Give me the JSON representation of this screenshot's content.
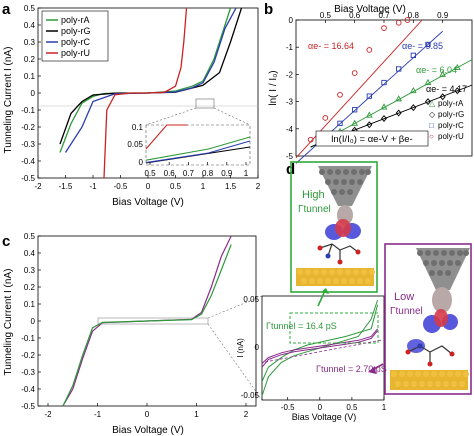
{
  "panels": {
    "a": {
      "letter": "a",
      "xlabel": "Bias Voltage (V)",
      "ylabel": "Tunneling Current I (nA)",
      "xticks": [
        "-2",
        "-1.5",
        "-1",
        "-0.5",
        "0",
        "0.5",
        "1",
        "1.5",
        "2"
      ],
      "yticks": [
        "0.5",
        "0.4",
        "0.3",
        "0.2",
        "0.1",
        "0",
        "-0.1",
        "-0.2",
        "-0.3",
        "-0.4",
        "-0.5"
      ],
      "legend": [
        "poly-rA",
        "poly-rG",
        "poly-rC",
        "poly-rU"
      ],
      "inset": {
        "yticks": [
          "0.1",
          "0.05",
          "0"
        ],
        "xticks": [
          "0.5",
          "0.6",
          "0.7",
          "0.8",
          "0.9",
          "1"
        ]
      }
    },
    "b": {
      "letter": "b",
      "xlabel": "Bias Voltage (V)",
      "ylabel": "ln( I / I₀)",
      "xticks": [
        "0.5",
        "0.6",
        "0.7",
        "0.8",
        "0.9"
      ],
      "yticks": [
        "0",
        "-1",
        "-2",
        "-3",
        "-4",
        "-5"
      ],
      "alphas": [
        "αe- = 16.64",
        "αe- = 9.85",
        "αe- = 6.04",
        "αe- = 4.17"
      ],
      "equation": "ln(I/I₀) = αe-V + βe-",
      "legend": [
        "poly-rA",
        "poly-rG",
        "poly-rC",
        "poly-rU"
      ]
    },
    "c": {
      "letter": "c",
      "xlabel": "Bias Voltage (V)",
      "ylabel": "Tunneling Current I (nA)",
      "xticks": [
        "-2",
        "-1",
        "0",
        "1",
        "2"
      ],
      "yticks": [
        "0.5",
        "0.4",
        "0.3",
        "0.2",
        "0.1",
        "0",
        "-0.1",
        "-0.2",
        "-0.3",
        "-0.4",
        "-0.5"
      ],
      "inset": {
        "ylabel": "I (nA)",
        "xlabel": "Bias Voltage (V)",
        "yticks": [
          "0.05",
          "0",
          "-0.05"
        ],
        "xticks": [
          "-0.5",
          "0",
          "0.5",
          "1"
        ],
        "high_gamma": "Γtunnel = 16.4 pS",
        "low_gamma": "Γtunnel = 2.70 pS"
      }
    },
    "d": {
      "letter": "d",
      "high_label": "High",
      "low_label": "Low",
      "gamma_label": "Γtunnel"
    }
  },
  "colors": {
    "rA": "#2e9a3a",
    "rG": "#000000",
    "rC": "#2a3cb0",
    "rU": "#cc2222",
    "purple": "#8a2b8a",
    "green_box": "#2eab3a",
    "gold": "#e8b530",
    "tip": "#9a9a9a"
  },
  "chart_data": [
    {
      "type": "line",
      "panel": "a",
      "xlabel": "Bias Voltage (V)",
      "ylabel": "Tunneling Current I (nA)",
      "xlim": [
        -2,
        2
      ],
      "ylim": [
        -0.5,
        0.5
      ],
      "series": [
        {
          "name": "poly-rA",
          "x": [
            -1.6,
            -1.4,
            -1.2,
            -1.0,
            -0.8,
            -0.5,
            0,
            0.5,
            0.8,
            1.0,
            1.2,
            1.3,
            1.5
          ],
          "y": [
            -0.35,
            -0.18,
            -0.06,
            -0.02,
            -0.003,
            0,
            0,
            0.012,
            0.04,
            0.07,
            0.2,
            0.3,
            0.5
          ]
        },
        {
          "name": "poly-rG",
          "x": [
            -1.6,
            -1.4,
            -1.2,
            -1.0,
            -0.6,
            0,
            0.5,
            1.0,
            1.3,
            1.5,
            1.7
          ],
          "y": [
            -0.3,
            -0.12,
            -0.05,
            -0.012,
            -0.001,
            0,
            0.005,
            0.045,
            0.12,
            0.3,
            0.5
          ]
        },
        {
          "name": "poly-rC",
          "x": [
            -1.5,
            -1.2,
            -1.0,
            -0.6,
            0,
            0.5,
            0.8,
            1.0,
            1.2,
            1.4,
            1.6
          ],
          "y": [
            -0.35,
            -0.2,
            -0.05,
            -0.005,
            0,
            0.006,
            0.03,
            0.06,
            0.18,
            0.38,
            0.5
          ]
        },
        {
          "name": "poly-rU",
          "x": [
            -0.8,
            -0.75,
            -0.6,
            -0.3,
            0,
            0.3,
            0.5,
            0.6,
            0.65,
            0.7
          ],
          "y": [
            -0.5,
            -0.1,
            -0.01,
            0,
            0,
            0.005,
            0.04,
            0.15,
            0.3,
            0.5
          ]
        }
      ]
    },
    {
      "type": "scatter",
      "panel": "b",
      "xlabel": "Bias Voltage (V)",
      "ylabel": "ln( I / I₀)",
      "xlim": [
        0.4,
        1.0
      ],
      "ylim": [
        -5,
        0
      ],
      "series": [
        {
          "name": "poly-rA",
          "x": [
            0.55,
            0.6,
            0.65,
            0.7,
            0.75,
            0.8,
            0.85,
            0.9,
            0.95
          ],
          "y": [
            -4.1,
            -3.8,
            -3.5,
            -3.2,
            -2.9,
            -2.6,
            -2.3,
            -2.0,
            -1.75
          ]
        },
        {
          "name": "poly-rG",
          "x": [
            0.55,
            0.6,
            0.65,
            0.7,
            0.75,
            0.8,
            0.85,
            0.9,
            0.95
          ],
          "y": [
            -4.25,
            -4.05,
            -3.85,
            -3.62,
            -3.42,
            -3.22,
            -3.0,
            -2.82,
            -2.6
          ]
        },
        {
          "name": "poly-rC",
          "x": [
            0.5,
            0.55,
            0.6,
            0.65,
            0.7,
            0.75,
            0.8,
            0.85
          ],
          "y": [
            -4.3,
            -3.8,
            -3.3,
            -2.8,
            -2.3,
            -1.8,
            -1.3,
            -0.9
          ]
        },
        {
          "name": "poly-rU",
          "x": [
            0.45,
            0.5,
            0.55,
            0.6,
            0.65,
            0.7,
            0.75,
            0.78
          ],
          "y": [
            -4.4,
            -3.6,
            -2.75,
            -1.95,
            -1.1,
            -0.3,
            -0.1,
            0
          ]
        }
      ]
    },
    {
      "type": "line",
      "panel": "c",
      "xlabel": "Bias Voltage (V)",
      "ylabel": "Tunneling Current I (nA)",
      "xlim": [
        -2,
        2
      ],
      "ylim": [
        -0.5,
        0.5
      ],
      "series": [
        {
          "name": "",
          "x": [
            -1.7,
            -1.5,
            -1.3,
            -1.1,
            -0.9,
            0,
            0.9,
            1.1,
            1.3,
            1.5,
            1.7
          ],
          "y": [
            -0.5,
            -0.4,
            -0.22,
            -0.06,
            -0.01,
            0,
            0.01,
            0.05,
            0.2,
            0.38,
            0.5
          ]
        },
        {
          "name": "",
          "x": [
            -1.7,
            -1.5,
            -1.3,
            -1.1,
            -0.9,
            0,
            0.9,
            1.1,
            1.3,
            1.5,
            1.7
          ],
          "y": [
            -0.5,
            -0.38,
            -0.2,
            -0.04,
            -0.008,
            0,
            0.008,
            0.04,
            0.15,
            0.3,
            0.45
          ]
        }
      ]
    }
  ]
}
